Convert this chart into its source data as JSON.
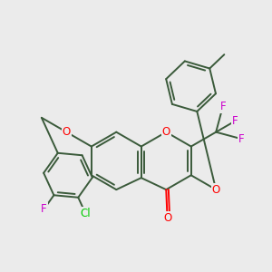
{
  "background_color": "#ebebeb",
  "bond_color": "#3a5a3a",
  "atom_colors": {
    "O": "#ff0000",
    "F": "#cc00cc",
    "Cl": "#00cc00",
    "C": "#3a5a3a"
  },
  "bond_lw": 1.4,
  "label_fontsize": 8.5
}
